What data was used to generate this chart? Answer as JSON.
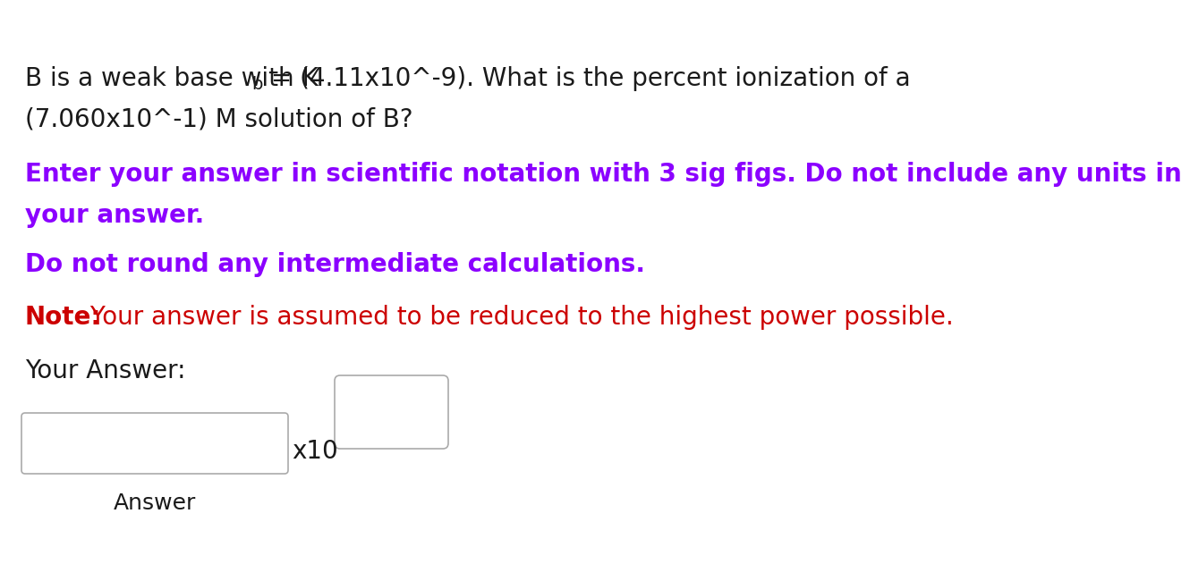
{
  "bg_color": "#ffffff",
  "text_color_black": "#1a1a1a",
  "text_color_purple": "#8B00FF",
  "text_color_red": "#CC0000",
  "text_color_red_bold": "#CC0000",
  "box_border_color": "#aaaaaa",
  "font_size_main": 20,
  "font_size_sub": 14,
  "font_size_purple": 20,
  "font_size_red": 20,
  "font_size_answer_label": 20,
  "font_size_x10": 20,
  "font_size_box_label": 18,
  "line1_pre": "B is a weak base with K",
  "line1_sub": "b",
  "line1_post": " = (4.11x10^-9). What is the percent ionization of a",
  "line2": "(7.060x10^-1) M solution of B?",
  "purple_line1": "Enter your answer in scientific notation with 3 sig figs. Do not include any units in",
  "purple_line2": "your answer.",
  "purple_line3": "Do not round any intermediate calculations.",
  "red_bold": "Note:",
  "red_rest": " Your answer is assumed to be reduced to the highest power possible.",
  "your_answer": "Your Answer:",
  "x10_label": "x10",
  "answer_label": "Answer"
}
